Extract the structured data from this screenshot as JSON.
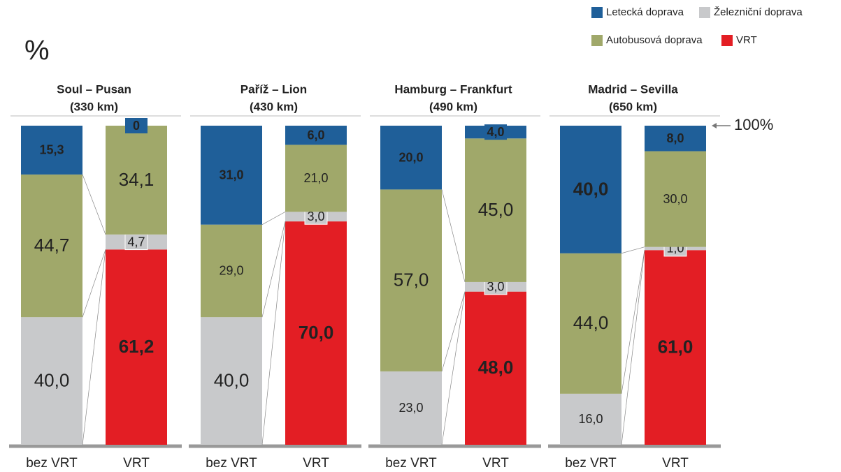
{
  "chart_data": {
    "type": "bar",
    "stacked": true,
    "y_label": "%",
    "groups": [
      {
        "title": "Soul – Pusan",
        "subtitle": "(330 km)"
      },
      {
        "title": "Paříž – Lion",
        "subtitle": "(430 km)"
      },
      {
        "title": "Hamburg – Frankfurt",
        "subtitle": "(490 km)"
      },
      {
        "title": "Madrid – Sevilla",
        "subtitle": "(650 km)"
      }
    ],
    "categories": [
      "bez VRT",
      "VRT",
      "bez VRT",
      "VRT",
      "bez VRT",
      "VRT",
      "bez VRT",
      "VRT"
    ],
    "series": [
      {
        "name": "Letecká doprava",
        "color": "#1f5f99",
        "values": [
          15.3,
          0,
          31.0,
          6.0,
          20.0,
          4.0,
          40.0,
          8.0
        ],
        "value_labels": [
          "15,3",
          "0",
          "31,0",
          "6,0",
          "20,0",
          "4,0",
          "40,0",
          "8,0"
        ]
      },
      {
        "name": "Autobusová doprava",
        "color": "#a0a86a",
        "values": [
          44.7,
          34.1,
          29.0,
          21.0,
          57.0,
          45.0,
          44.0,
          30.0
        ],
        "value_labels": [
          "44,7",
          "34,1",
          "29,0",
          "21,0",
          "57,0",
          "45,0",
          "44,0",
          "30,0"
        ]
      },
      {
        "name": "Železniční doprava",
        "color": "#c8c9cb",
        "values": [
          40.0,
          4.7,
          40.0,
          3.0,
          23.0,
          3.0,
          16.0,
          1.0
        ],
        "value_labels": [
          "40,0",
          "4,7",
          "40,0",
          "3,0",
          "23,0",
          "3,0",
          "16,0",
          "1,0"
        ]
      },
      {
        "name": "VRT",
        "color": "#e31e24",
        "values": [
          null,
          61.2,
          null,
          70.0,
          null,
          48.0,
          null,
          61.0
        ],
        "value_labels": [
          null,
          "61,2",
          null,
          "70,0",
          null,
          "48,0",
          null,
          "61,0"
        ]
      }
    ],
    "ylim": [
      0,
      100
    ],
    "yticks": [
      {
        "value": 100,
        "label": "100%"
      }
    ]
  }
}
